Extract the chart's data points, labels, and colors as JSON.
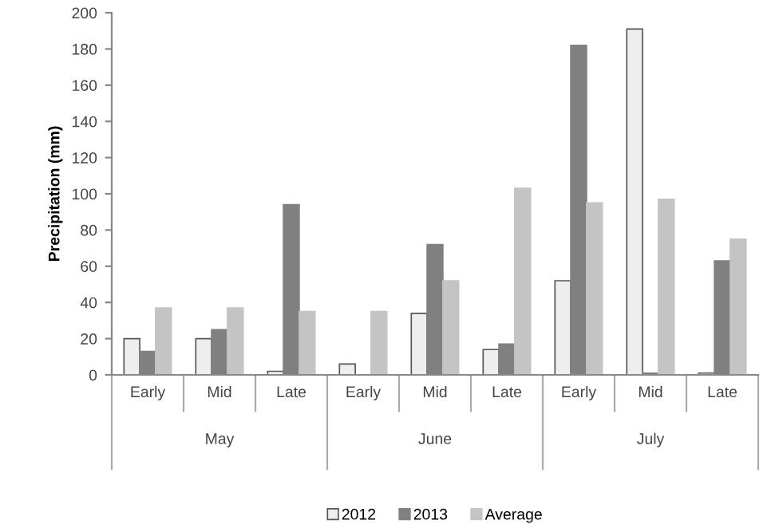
{
  "chart_data": {
    "type": "bar",
    "ylabel": "Precipitation (mm)",
    "categories": [
      "Early",
      "Mid",
      "Late",
      "Early",
      "Mid",
      "Late",
      "Early",
      "Mid",
      "Late"
    ],
    "annotations": [
      "May",
      "June",
      "July"
    ],
    "series": [
      {
        "name": "2012",
        "color": "#eeeeee",
        "values": [
          20,
          20,
          2,
          6,
          34,
          14,
          52,
          191,
          1
        ]
      },
      {
        "name": "2013",
        "color": "#808080",
        "values": [
          13,
          25,
          94,
          null,
          72,
          17,
          182,
          1,
          63
        ]
      },
      {
        "name": "Average",
        "color": "#c4c4c4",
        "values": [
          37,
          37,
          35,
          35,
          52,
          103,
          95,
          97,
          75
        ]
      }
    ],
    "ylim": [
      0,
      200
    ],
    "yticks": [
      0,
      20,
      40,
      60,
      80,
      100,
      120,
      140,
      160,
      180,
      200
    ],
    "grid": false,
    "legend": "bottom"
  }
}
